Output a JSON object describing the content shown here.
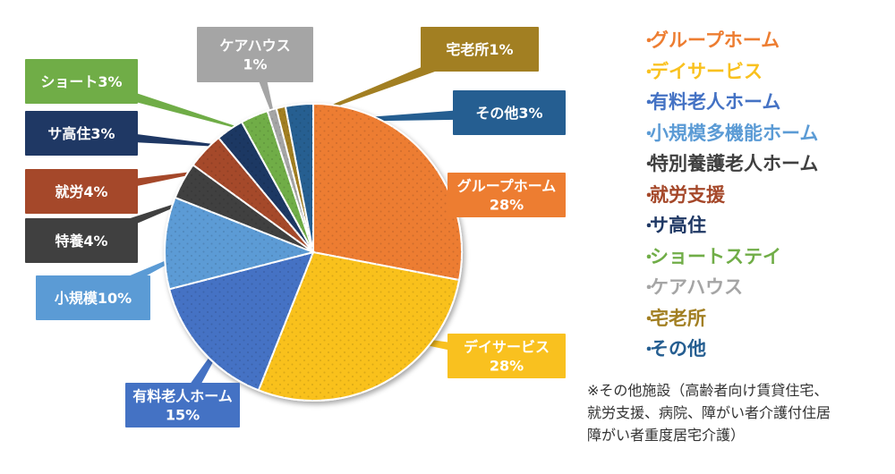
{
  "chart_data": {
    "type": "pie",
    "slices": [
      {
        "name": "グループホーム",
        "label_lines": [
          "グループホーム",
          "28%"
        ],
        "value": 28,
        "color": "#ED7D31"
      },
      {
        "name": "デイサービス",
        "label_lines": [
          "デイサービス",
          "28%"
        ],
        "value": 28,
        "color": "#F9C11F"
      },
      {
        "name": "有料老人ホーム",
        "label_lines": [
          "有料老人ホーム",
          "15%"
        ],
        "value": 15,
        "color": "#4472C4"
      },
      {
        "name": "小規模多機能ホーム",
        "label_lines": [
          "小規模10%"
        ],
        "value": 10,
        "color": "#5B9BD5"
      },
      {
        "name": "特別養護老人ホーム",
        "label_lines": [
          "特養4%"
        ],
        "value": 4,
        "color": "#404040"
      },
      {
        "name": "就労支援",
        "label_lines": [
          "就労4%"
        ],
        "value": 4,
        "color": "#A5482A"
      },
      {
        "name": "サ高住",
        "label_lines": [
          "サ高住3%"
        ],
        "value": 3,
        "color": "#1F3864"
      },
      {
        "name": "ショートステイ",
        "label_lines": [
          "ショート3%"
        ],
        "value": 3,
        "color": "#70AD47"
      },
      {
        "name": "ケアハウス",
        "label_lines": [
          "ケアハウス",
          "1%"
        ],
        "value": 1,
        "color": "#A5A5A5"
      },
      {
        "name": "宅老所",
        "label_lines": [
          "宅老所1%"
        ],
        "value": 1,
        "color": "#A27F22"
      },
      {
        "name": "その他",
        "label_lines": [
          "その他3%"
        ],
        "value": 3,
        "color": "#255E91"
      }
    ],
    "legend_position": "right",
    "legend": [
      {
        "label": "グループホーム",
        "color": "#ED7D31"
      },
      {
        "label": "デイサービス",
        "color": "#F9C11F"
      },
      {
        "label": "有料老人ホーム",
        "color": "#4472C4"
      },
      {
        "label": "小規模多機能ホーム",
        "color": "#5B9BD5"
      },
      {
        "label": "特別養護老人ホーム",
        "color": "#404040"
      },
      {
        "label": "就労支援",
        "color": "#A5482A"
      },
      {
        "label": "サ高住",
        "color": "#1F3864"
      },
      {
        "label": "ショートステイ",
        "color": "#70AD47"
      },
      {
        "label": "ケアハウス",
        "color": "#A5A5A5"
      },
      {
        "label": "宅老所",
        "color": "#A27F22"
      },
      {
        "label": "その他",
        "color": "#255E91"
      }
    ]
  },
  "legend_bullet": "・",
  "footnote": {
    "lines": [
      "※その他施設（高齢者向け賃貸住宅、",
      "就労支援、病院、障がい者介護付住居",
      "障がい者重度居宅介護）"
    ]
  }
}
